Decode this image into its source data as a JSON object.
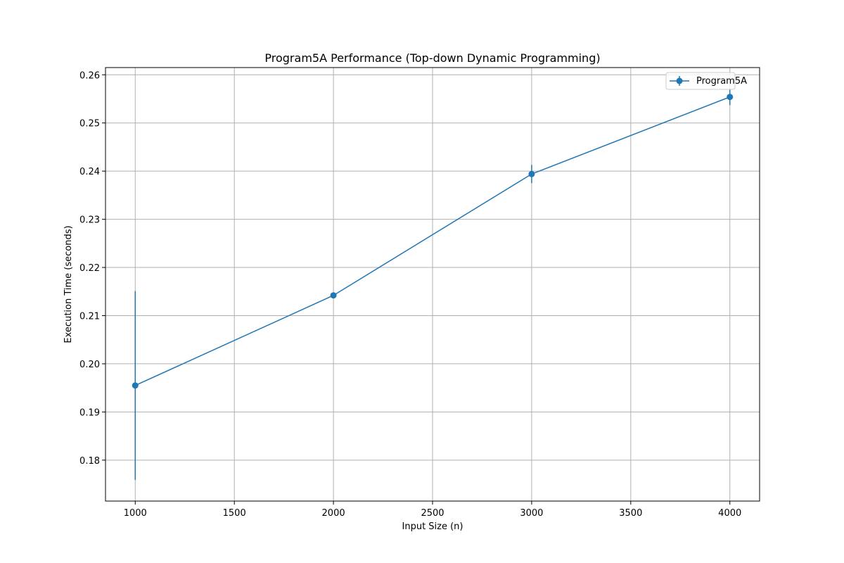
{
  "chart_data": {
    "type": "line",
    "title": "Program5A Performance (Top-down Dynamic Programming)",
    "xlabel": "Input Size (n)",
    "ylabel": "Execution Time (seconds)",
    "xlim": [
      850,
      4150
    ],
    "ylim": [
      0.1715,
      0.2615
    ],
    "xticks": [
      1000,
      1500,
      2000,
      2500,
      3000,
      3500,
      4000
    ],
    "xtick_labels": [
      "1000",
      "1500",
      "2000",
      "2500",
      "3000",
      "3500",
      "4000"
    ],
    "yticks": [
      0.18,
      0.19,
      0.2,
      0.21,
      0.22,
      0.23,
      0.24,
      0.25,
      0.26
    ],
    "ytick_labels": [
      "0.18",
      "0.19",
      "0.20",
      "0.21",
      "0.22",
      "0.23",
      "0.24",
      "0.25",
      "0.26"
    ],
    "grid": true,
    "legend_position": "top-right",
    "series": [
      {
        "name": "Program5A",
        "color": "#1f77b4",
        "marker": "circle",
        "x": [
          1000,
          2000,
          3000,
          4000
        ],
        "y": [
          0.1955,
          0.2142,
          0.2394,
          0.2554
        ],
        "yerr": [
          0.0196,
          0.0002,
          0.0019,
          0.0017
        ]
      }
    ]
  }
}
